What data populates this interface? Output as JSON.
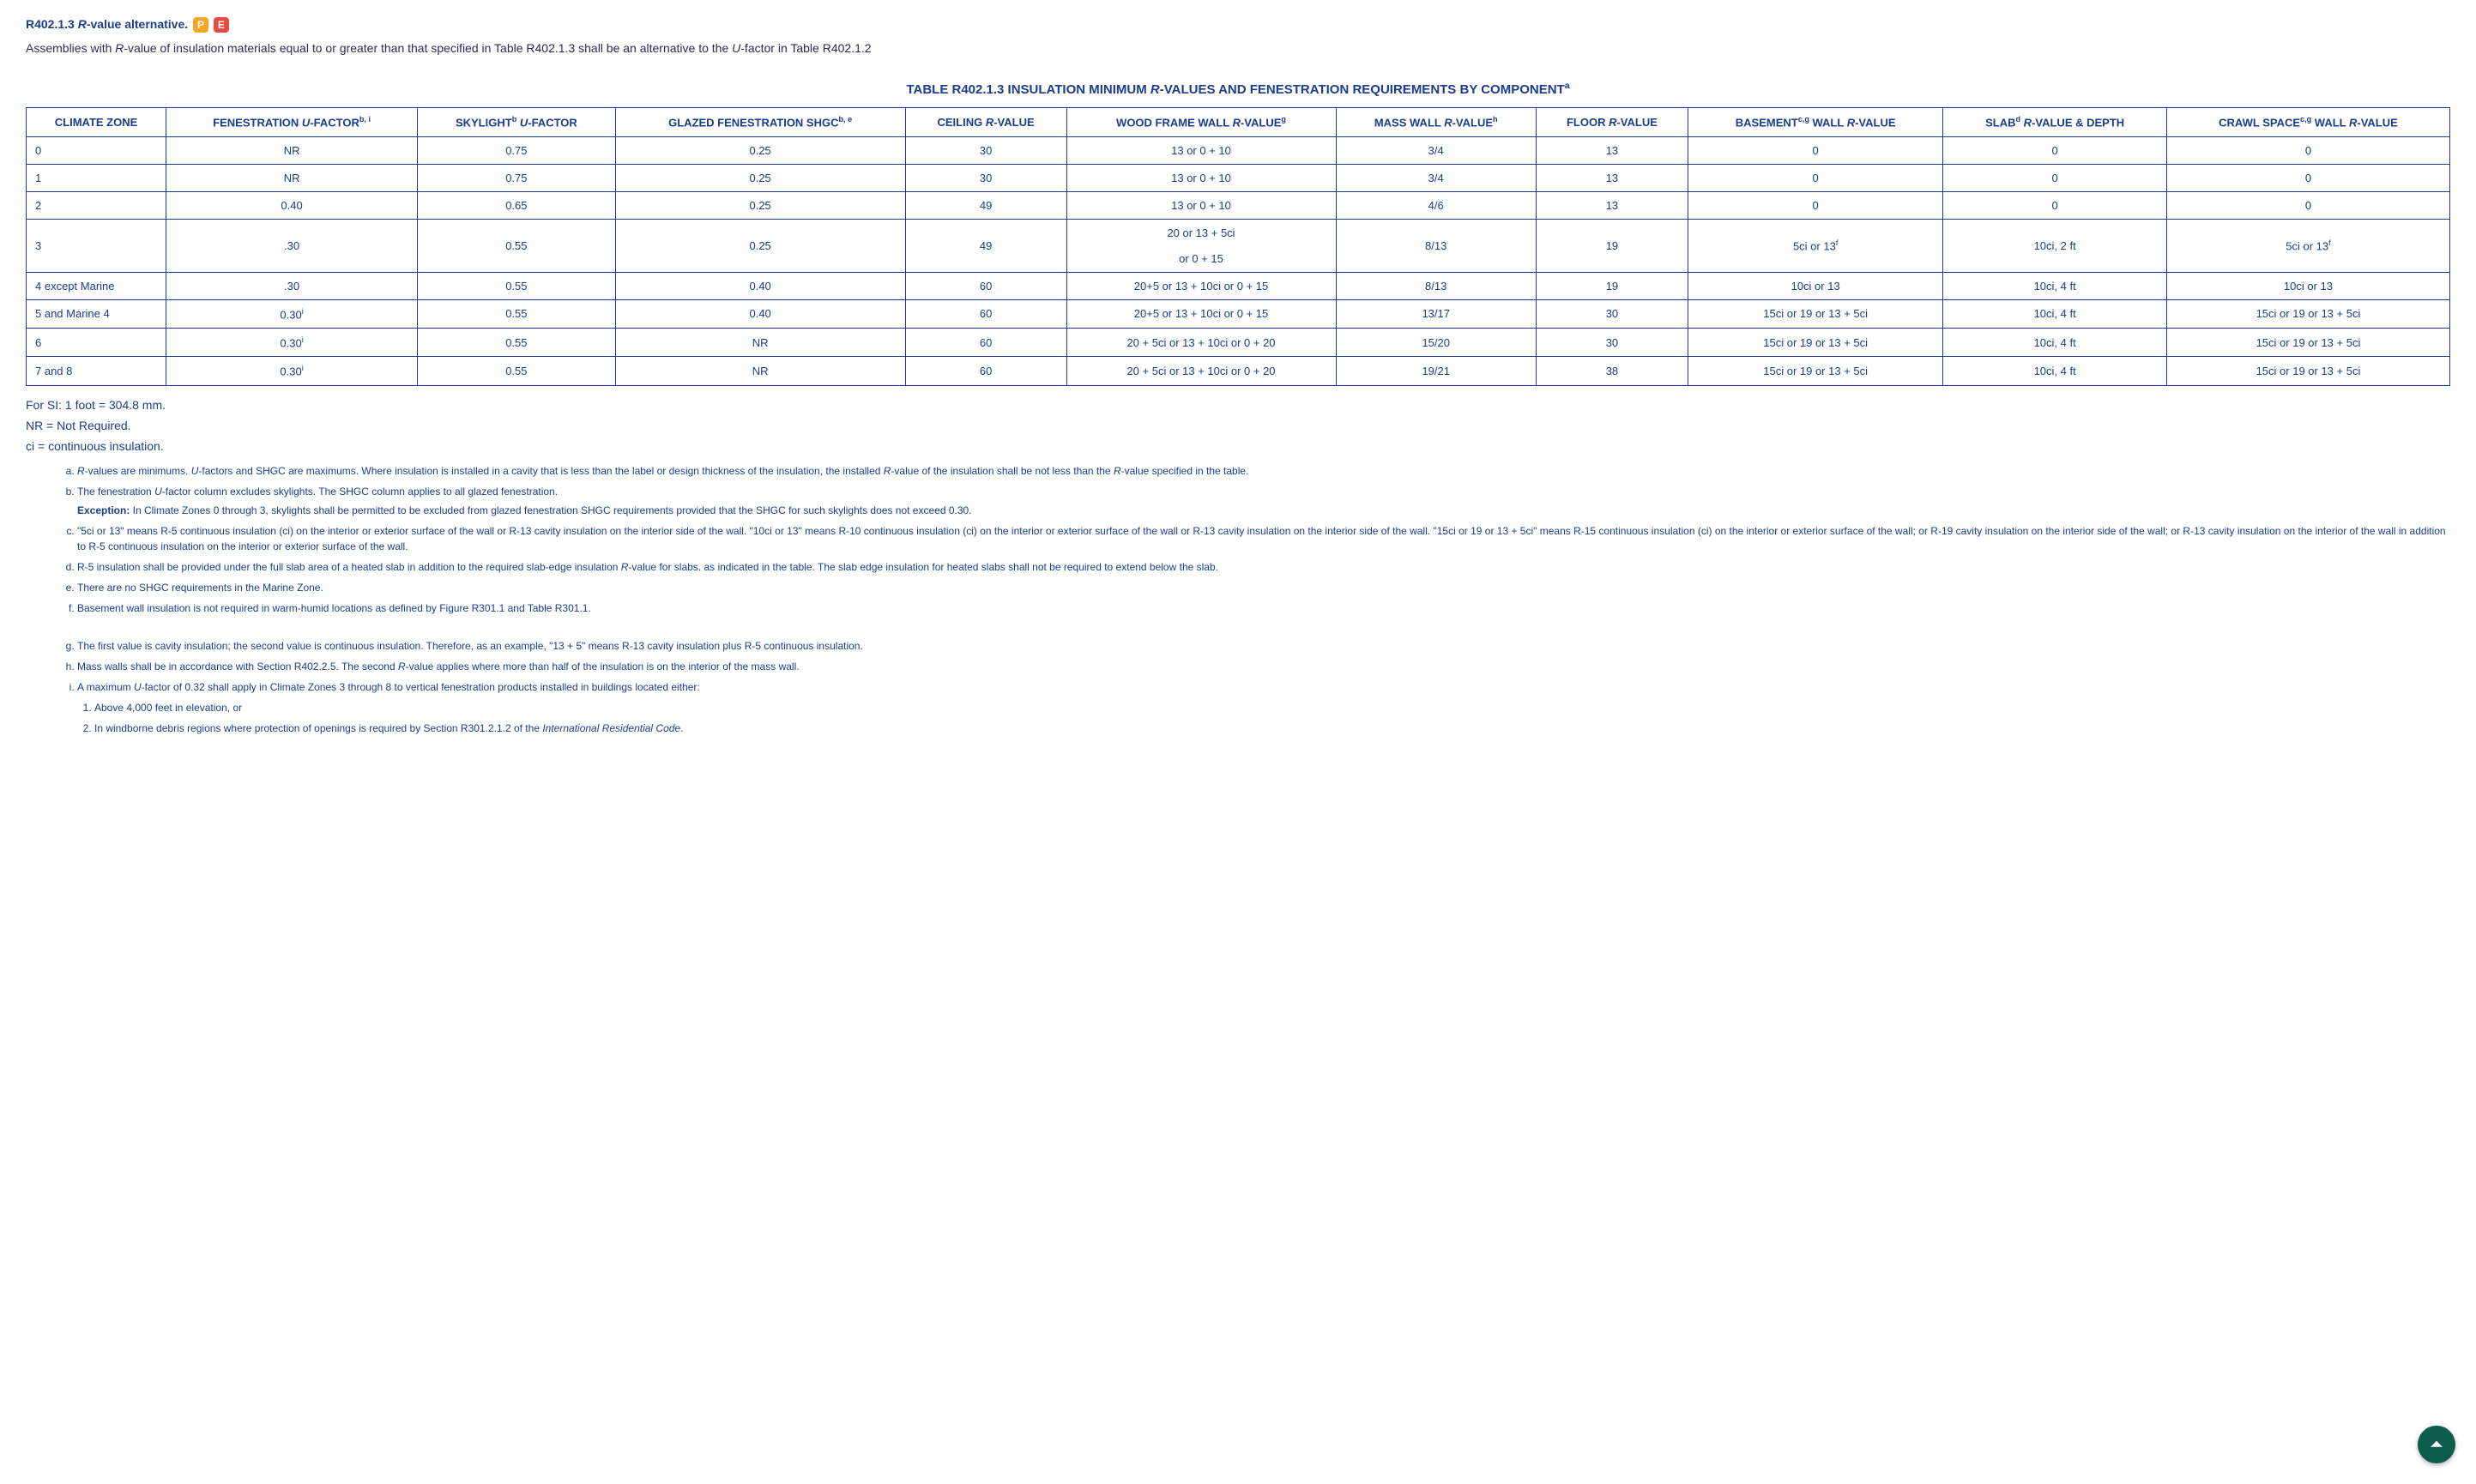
{
  "section": {
    "number": "R402.1.3",
    "title_italic": "R",
    "title_rest": "-value alternative.",
    "tag_p": "P",
    "tag_e": "E"
  },
  "intro": {
    "pre": "Assemblies with ",
    "ital1": "R",
    "mid1": "-value of insulation materials equal to or greater than that specified in Table R402.1.3 shall be an alternative to the ",
    "ital2": "U",
    "post": "-factor in Table R402.1.2"
  },
  "table_title": {
    "pre": "TABLE R402.1.3 INSULATION MINIMUM ",
    "ital": "R",
    "post": "-VALUES AND FENESTRATION REQUIREMENTS BY COMPONENT",
    "sup": "a"
  },
  "headers": {
    "climate": "CLIMATE ZONE",
    "fen_pre": "FENESTRATION ",
    "fen_ital": "U",
    "fen_post": "-FACTOR",
    "fen_sup": "b, i",
    "sky_pre": "SKYLIGHT",
    "sky_sup": "b",
    "sky_ital": " U",
    "sky_post": "-FACTOR",
    "glazed_pre": "GLAZED FENESTRATION SHGC",
    "glazed_sup": "b, e",
    "ceil_pre": "CEILING ",
    "ceil_ital": "R",
    "ceil_post": "-VALUE",
    "wood_pre": "WOOD FRAME WALL ",
    "wood_ital": "R",
    "wood_post": "-VALUE",
    "wood_sup": "g",
    "mass_pre": "MASS WALL ",
    "mass_ital": "R",
    "mass_post": "-VALUE",
    "mass_sup": "h",
    "floor_pre": "FLOOR ",
    "floor_ital": "R",
    "floor_post": "-VALUE",
    "base_pre": "BASEMENT",
    "base_sup": "c,g",
    "base_post": " WALL ",
    "base_ital": "R",
    "base_post2": "-VALUE",
    "slab_pre": "SLAB",
    "slab_sup": "d",
    "slab_ital": " R",
    "slab_post": "-VALUE & DEPTH",
    "crawl_pre": "CRAWL SPACE",
    "crawl_sup": "c,g",
    "crawl_post": " WALL ",
    "crawl_ital": "R",
    "crawl_post2": "-VALUE"
  },
  "rows": [
    {
      "zone": "0",
      "fen": "NR",
      "sky": "0.75",
      "shgc": "0.25",
      "ceil": "30",
      "wood": "13 or 0 + 10",
      "mass": "3/4",
      "floor": "13",
      "base": "0",
      "slab": "0",
      "crawl": "0"
    },
    {
      "zone": "1",
      "fen": "NR",
      "sky": "0.75",
      "shgc": "0.25",
      "ceil": "30",
      "wood": "13 or 0 + 10",
      "mass": "3/4",
      "floor": "13",
      "base": "0",
      "slab": "0",
      "crawl": "0"
    },
    {
      "zone": "2",
      "fen": "0.40",
      "sky": "0.65",
      "shgc": "0.25",
      "ceil": "49",
      "wood": "13 or 0 + 10",
      "mass": "4/6",
      "floor": "13",
      "base": "0",
      "slab": "0",
      "crawl": "0"
    },
    {
      "zone": "3",
      "fen": ".30",
      "sky": "0.55",
      "shgc": "0.25",
      "ceil": "49",
      "wood": "20 or 13 + 5ci or 0 + 15",
      "mass": "8/13",
      "floor": "19",
      "base": "5ci or 13",
      "base_sup": "f",
      "slab": "10ci, 2 ft",
      "crawl": "5ci or 13",
      "crawl_sup": "f"
    },
    {
      "zone": "4 except Marine",
      "fen": ".30",
      "sky": "0.55",
      "shgc": "0.40",
      "ceil": "60",
      "wood": "20+5 or 13 + 10ci or 0 + 15",
      "mass": "8/13",
      "floor": "19",
      "base": "10ci or 13",
      "slab": "10ci, 4 ft",
      "crawl": "10ci or 13"
    },
    {
      "zone": "5 and Marine 4",
      "fen": "0.30",
      "fen_sup": "i",
      "sky": "0.55",
      "shgc": "0.40",
      "ceil": "60",
      "wood": "20+5 or 13 + 10ci or 0 + 15",
      "mass": "13/17",
      "floor": "30",
      "base": "15ci or 19 or 13 + 5ci",
      "slab": "10ci, 4 ft",
      "crawl": "15ci or 19 or 13 + 5ci"
    },
    {
      "zone": "6",
      "fen": "0.30",
      "fen_sup": "i",
      "sky": "0.55",
      "shgc": "NR",
      "ceil": "60",
      "wood": "20 + 5ci or 13 + 10ci or 0 + 20",
      "mass": "15/20",
      "floor": "30",
      "base": "15ci or 19 or 13 + 5ci",
      "slab": "10ci, 4 ft",
      "crawl": "15ci or 19 or 13 + 5ci"
    },
    {
      "zone": "7 and 8",
      "fen": "0.30",
      "fen_sup": "i",
      "sky": "0.55",
      "shgc": "NR",
      "ceil": "60",
      "wood": "20 + 5ci or 13 + 10ci or 0 + 20",
      "mass": "19/21",
      "floor": "38",
      "base": "15ci or 19 or 13 + 5ci",
      "slab": "10ci, 4 ft",
      "crawl": "15ci or 19 or 13 + 5ci"
    }
  ],
  "notes": {
    "si": "For SI: 1 foot = 304.8 mm.",
    "nr": "NR = Not Required.",
    "ci": "ci = continuous insulation."
  },
  "footnotes": {
    "a": {
      "pre": "",
      "i1": "R",
      "m1": "-values are minimums. ",
      "i2": "U",
      "m2": "-factors and SHGC are maximums. Where insulation is installed in a cavity that is less than the label or design thickness of the insulation, the installed ",
      "i3": "R",
      "m3": "-value of the insulation shall be not less than the ",
      "i4": "R",
      "post": "-value specified in the table."
    },
    "b_text": {
      "pre": "The fenestration ",
      "i": "U",
      "post": "-factor column excludes skylights. The SHGC column applies to all glazed fenestration."
    },
    "b_exc_label": "Exception:",
    "b_exc": " In Climate Zones 0 through 3, skylights shall be permitted to be excluded from glazed fenestration SHGC requirements provided that the SHGC for such skylights does not exceed 0.30.",
    "c": "\"5ci or 13\" means R-5 continuous insulation (ci) on the interior or exterior surface of the wall or R-13 cavity insulation on the interior side of the wall.    \"10ci or 13\" means R-10 continuous insulation (ci) on the interior or exterior surface of the wall or R-13 cavity insulation on the interior side of the wall.  \"15ci or 19 or 13 + 5ci\" means R-15 continuous insulation (ci) on the interior or exterior surface of the wall; or R-19 cavity insulation on the interior side of the wall; or R-13 cavity insulation on the interior of the wall in addition to R-5 continuous insulation on the interior or exterior surface of the wall.",
    "d": {
      "pre": "R-5 insulation shall be provided under the full slab area of a heated slab in addition to the required slab-edge insulation ",
      "i": "R",
      "post": "-value for slabs. as indicated in the table. The slab edge insulation for heated slabs shall not be required to extend below the slab."
    },
    "e": "There are no SHGC requirements in the Marine Zone.",
    "f": "Basement wall insulation is not required in warm-humid locations as defined by Figure R301.1 and Table R301.1.",
    "g": "The first value is cavity insulation; the second value is continuous insulation. Therefore, as an example, \"13 + 5\" means R-13 cavity insulation plus R-5 continuous insulation.",
    "h": {
      "pre": "Mass walls shall be in accordance with Section R402.2.5. The second ",
      "i": "R",
      "post": "-value applies where more than half of the insulation is on the interior of the mass wall."
    },
    "i_text": {
      "pre": "A maximum ",
      "i": "U",
      "post": "-factor of 0.32 shall apply in Climate Zones 3 through 8 to vertical fenestration products installed in buildings located either:"
    },
    "i_1": "Above 4,000 feet in elevation, or",
    "i_2": {
      "pre": "In windborne debris regions where protection of openings is required by Section R301.2.1.2 of the ",
      "i": "International Residential Code",
      "post": "."
    }
  }
}
